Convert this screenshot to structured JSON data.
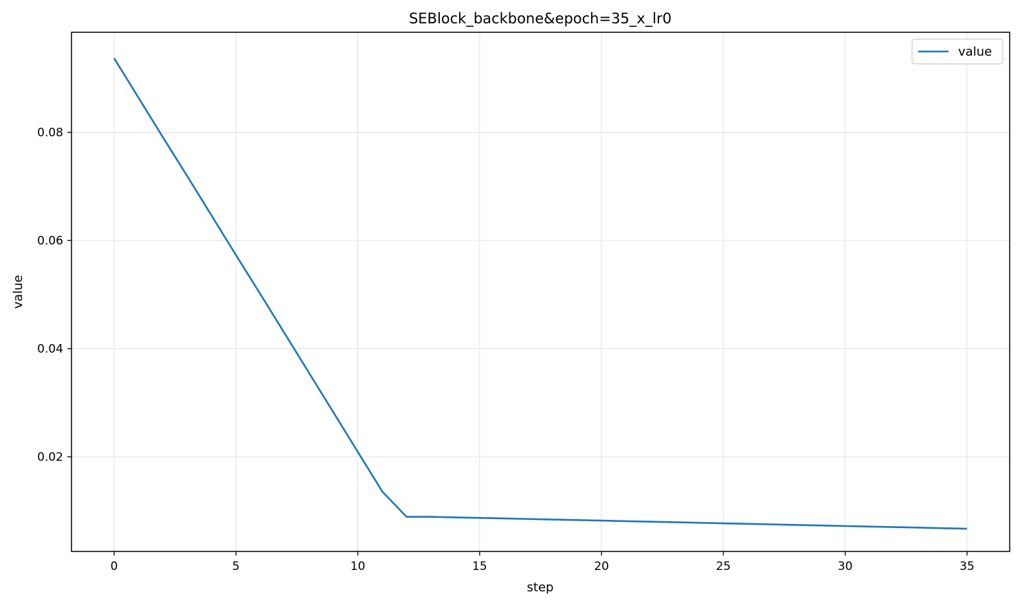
{
  "chart_data": {
    "type": "line",
    "title": "SEBlock_backbone&epoch=35_x_lr0",
    "xlabel": "step",
    "ylabel": "value",
    "xlim": [
      -1.75,
      36.75
    ],
    "ylim": [
      0.0025,
      0.0985
    ],
    "x_ticks": [
      0,
      5,
      10,
      15,
      20,
      25,
      30,
      35
    ],
    "y_ticks": [
      0.02,
      0.04,
      0.06,
      0.08
    ],
    "x_tick_labels": [
      "0",
      "5",
      "10",
      "15",
      "20",
      "25",
      "30",
      "35"
    ],
    "y_tick_labels": [
      "0.02",
      "0.04",
      "0.06",
      "0.08"
    ],
    "grid": true,
    "legend_position": "upper right",
    "colors": {
      "series": "#1f77b4",
      "grid": "#e6e6e6",
      "axis": "#000000"
    },
    "series": [
      {
        "name": "value",
        "x": [
          0,
          1,
          2,
          3,
          4,
          5,
          6,
          7,
          8,
          9,
          10,
          11,
          12,
          13,
          14,
          15,
          16,
          17,
          18,
          19,
          20,
          21,
          22,
          23,
          24,
          25,
          26,
          27,
          28,
          29,
          30,
          31,
          32,
          33,
          34,
          35
        ],
        "values": [
          0.0937,
          0.0864,
          0.0791,
          0.0719,
          0.0646,
          0.0573,
          0.0501,
          0.0428,
          0.0355,
          0.0282,
          0.0209,
          0.0136,
          0.0089,
          0.0089,
          0.0088,
          0.0087,
          0.0086,
          0.0085,
          0.0084,
          0.0083,
          0.0082,
          0.0081,
          0.008,
          0.0079,
          0.0078,
          0.0077,
          0.0076,
          0.0075,
          0.0074,
          0.0073,
          0.0072,
          0.0071,
          0.007,
          0.0069,
          0.0068,
          0.0067
        ]
      }
    ]
  }
}
